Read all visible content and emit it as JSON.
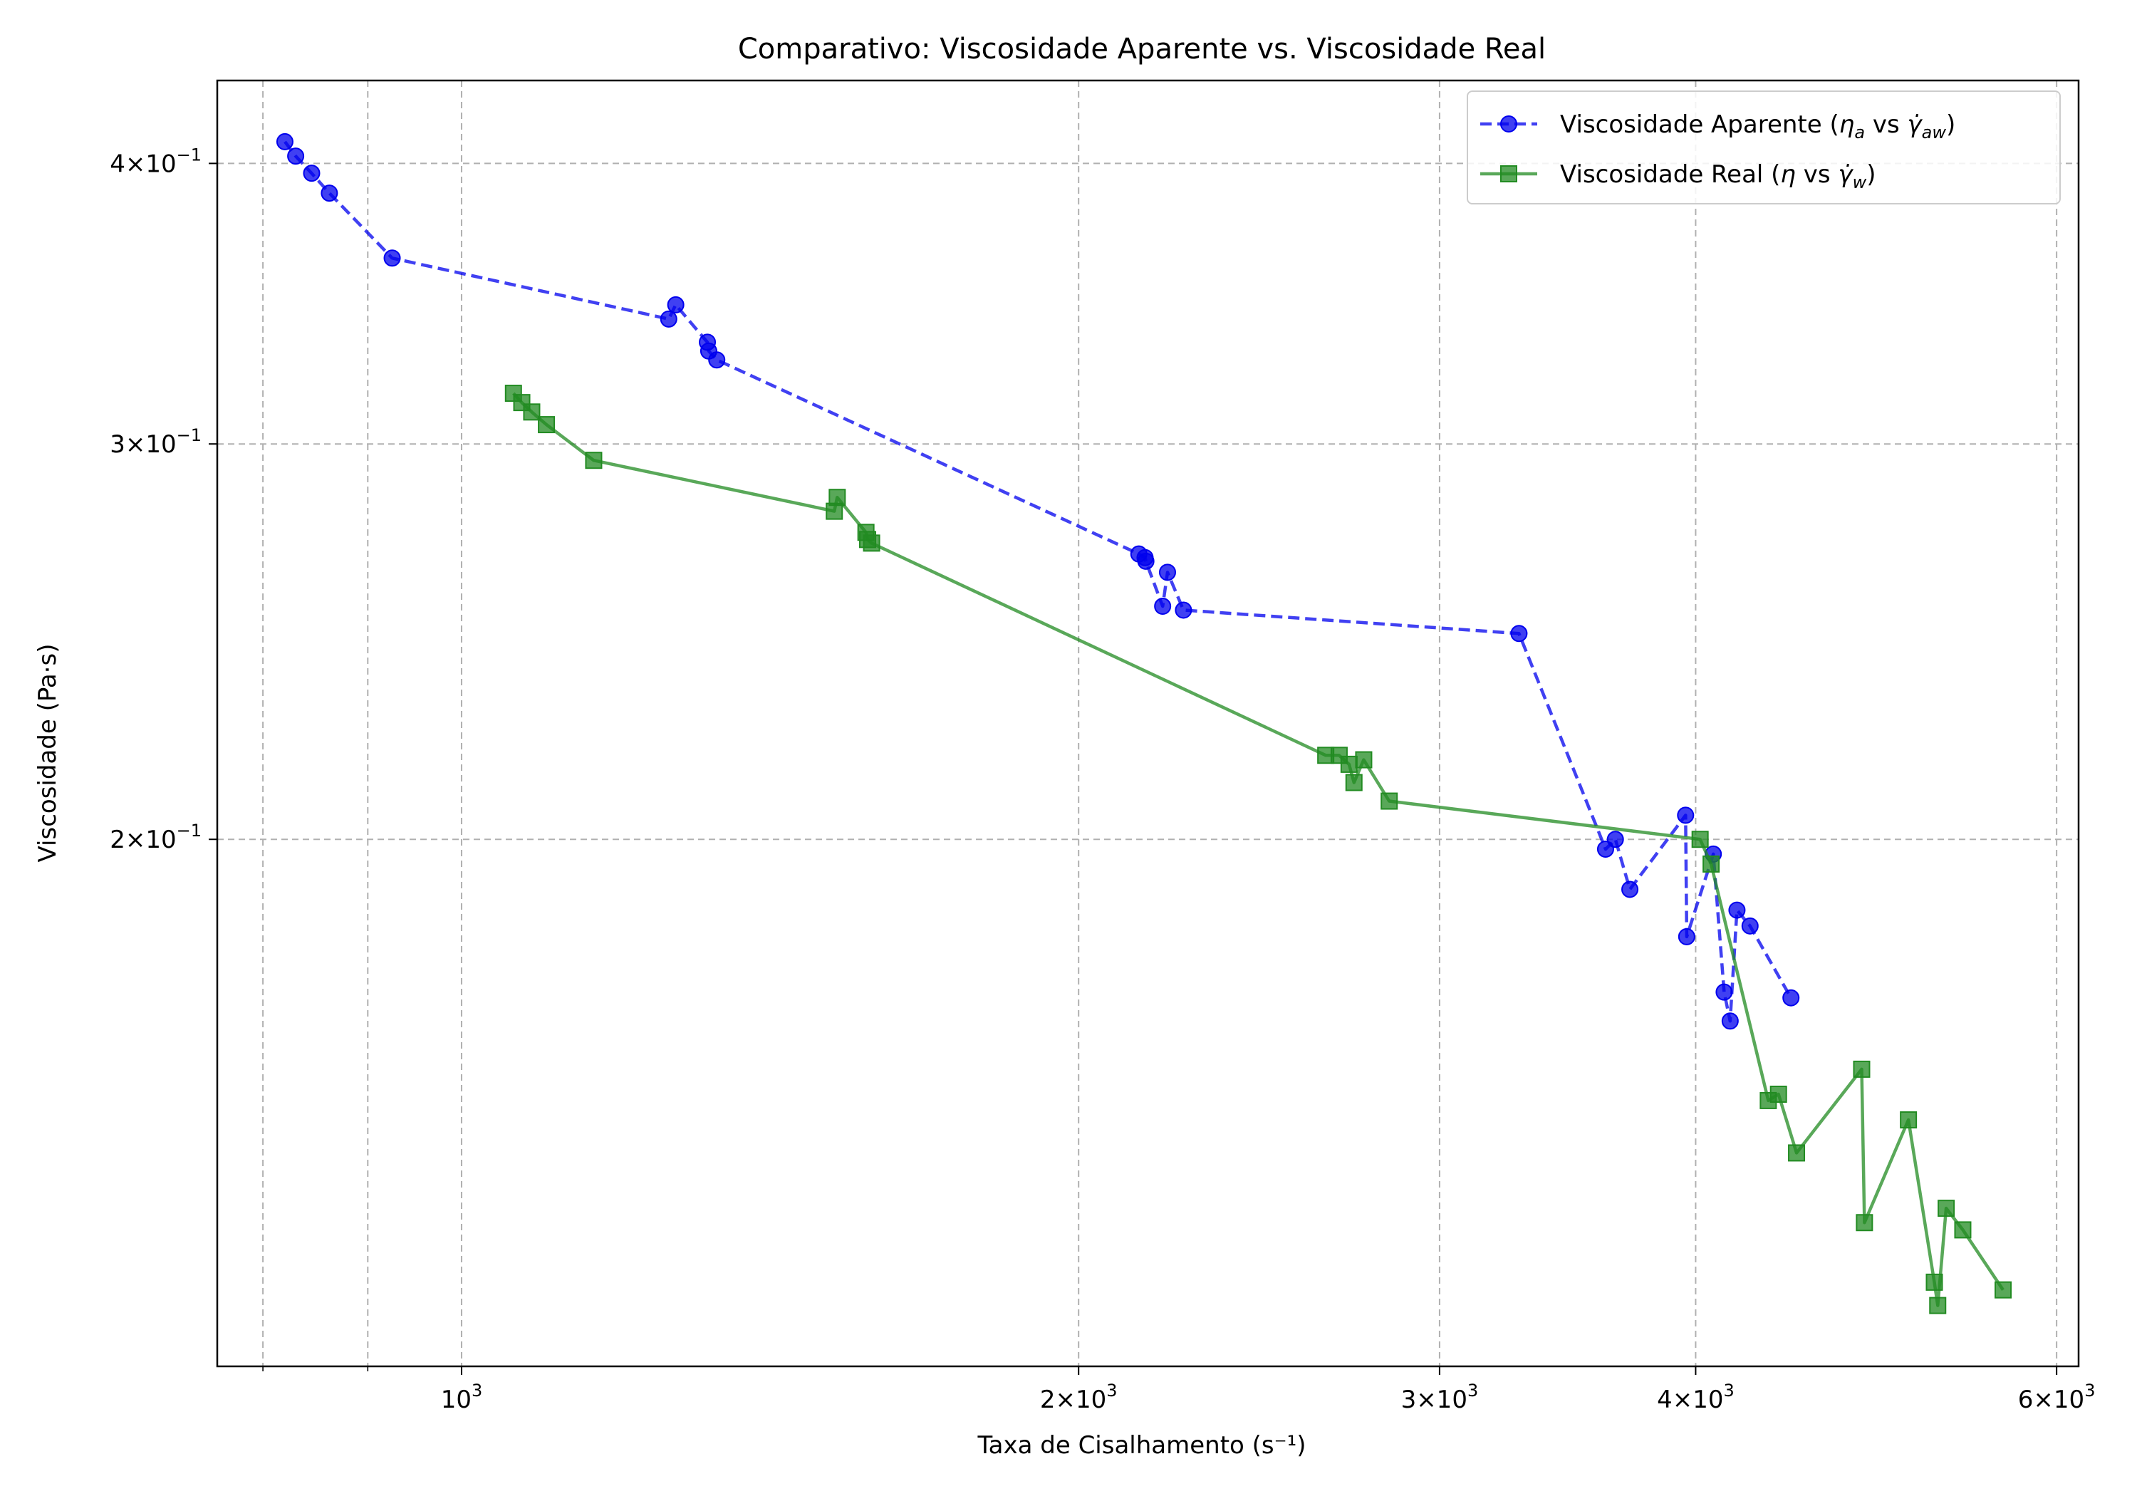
{
  "chart_data": {
    "type": "line",
    "title": "Comparativo: Viscosidade Aparente vs. Viscosidade Real",
    "xlabel": "Taxa de Cisalhamento (s⁻¹)",
    "ylabel": "Viscosidade (Pa·s)",
    "xscale": "log",
    "yscale": "log",
    "xlim": [
      760,
      6150
    ],
    "ylim": [
      0.1165,
      0.4355
    ],
    "grid": true,
    "legend_position": "top-right",
    "x_major_ticks": [
      {
        "value": 1000,
        "base": "10",
        "exp": "3"
      },
      {
        "value": 2000,
        "base": "2×10",
        "exp": "3"
      },
      {
        "value": 3000,
        "base": "3×10",
        "exp": "3"
      },
      {
        "value": 4000,
        "base": "4×10",
        "exp": "3"
      },
      {
        "value": 6000,
        "base": "6×10",
        "exp": "3"
      }
    ],
    "x_minor_grid": [
      800,
      900
    ],
    "y_major_ticks": [
      {
        "value": 0.2,
        "base": "2×10",
        "exp": "−1"
      },
      {
        "value": 0.3,
        "base": "3×10",
        "exp": "−1"
      },
      {
        "value": 0.4,
        "base": "4×10",
        "exp": "−1"
      }
    ],
    "series": [
      {
        "name": "Viscosidade Aparente (ηa vs γ̇aw)",
        "legend_main": "Viscosidade Aparente (",
        "legend_sym1": "η",
        "legend_sub1": "a",
        "legend_vs": " vs ",
        "legend_sym2": "γ̇",
        "legend_sub2": "aw",
        "legend_close": ")",
        "color": "#0000ee",
        "linestyle": "dashed",
        "marker": "circle",
        "points": [
          [
            820,
            0.409
          ],
          [
            830,
            0.403
          ],
          [
            845,
            0.396
          ],
          [
            862,
            0.388
          ],
          [
            925,
            0.363
          ],
          [
            1262,
            0.341
          ],
          [
            1272,
            0.346
          ],
          [
            1318,
            0.333
          ],
          [
            1320,
            0.33
          ],
          [
            1332,
            0.327
          ],
          [
            2140,
            0.268
          ],
          [
            2155,
            0.267
          ],
          [
            2157,
            0.266
          ],
          [
            2198,
            0.254
          ],
          [
            2210,
            0.263
          ],
          [
            2250,
            0.253
          ],
          [
            3280,
            0.247
          ],
          [
            3615,
            0.198
          ],
          [
            3655,
            0.2
          ],
          [
            3715,
            0.19
          ],
          [
            3955,
            0.205
          ],
          [
            3960,
            0.181
          ],
          [
            4080,
            0.197
          ],
          [
            4130,
            0.171
          ],
          [
            4158,
            0.166
          ],
          [
            4190,
            0.186
          ],
          [
            4252,
            0.183
          ],
          [
            4452,
            0.17
          ]
        ]
      },
      {
        "name": "Viscosidade Real (η vs γ̇w)",
        "legend_main": "Viscosidade Real (",
        "legend_sym1": "η",
        "legend_sub1": "",
        "legend_vs": " vs ",
        "legend_sym2": "γ̇",
        "legend_sub2": "w",
        "legend_close": ")",
        "color": "#228b22",
        "linestyle": "solid",
        "marker": "square",
        "points": [
          [
            1060,
            0.316
          ],
          [
            1070,
            0.313
          ],
          [
            1082,
            0.31
          ],
          [
            1100,
            0.306
          ],
          [
            1160,
            0.295
          ],
          [
            1520,
            0.28
          ],
          [
            1525,
            0.284
          ],
          [
            1575,
            0.274
          ],
          [
            1578,
            0.272
          ],
          [
            1585,
            0.271
          ],
          [
            2640,
            0.218
          ],
          [
            2680,
            0.218
          ],
          [
            2710,
            0.216
          ],
          [
            2725,
            0.212
          ],
          [
            2755,
            0.217
          ],
          [
            2835,
            0.208
          ],
          [
            4020,
            0.2
          ],
          [
            4070,
            0.195
          ],
          [
            4340,
            0.153
          ],
          [
            4390,
            0.154
          ],
          [
            4480,
            0.145
          ],
          [
            4820,
            0.158
          ],
          [
            4835,
            0.135
          ],
          [
            5080,
            0.15
          ],
          [
            5230,
            0.127
          ],
          [
            5250,
            0.124
          ],
          [
            5300,
            0.137
          ],
          [
            5400,
            0.134
          ],
          [
            5650,
            0.126
          ]
        ]
      }
    ]
  }
}
